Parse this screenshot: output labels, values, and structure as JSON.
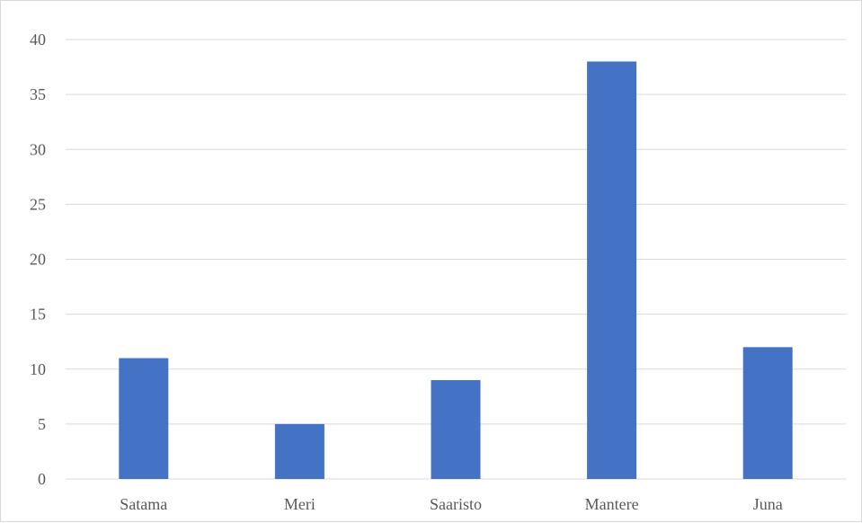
{
  "chart_data": {
    "type": "bar",
    "title": "",
    "xlabel": "",
    "ylabel": "",
    "categories": [
      "Satama",
      "Meri",
      "Saaristo",
      "Mantere",
      "Juna"
    ],
    "values": [
      11,
      5,
      9,
      38,
      12
    ],
    "ylim": [
      0,
      40
    ],
    "yticks": [
      0,
      5,
      10,
      15,
      20,
      25,
      30,
      35,
      40
    ],
    "grid": true,
    "legend": "none",
    "bar_color": "#4472c4",
    "grid_color": "#d9d9d9",
    "text_color": "#595959"
  }
}
